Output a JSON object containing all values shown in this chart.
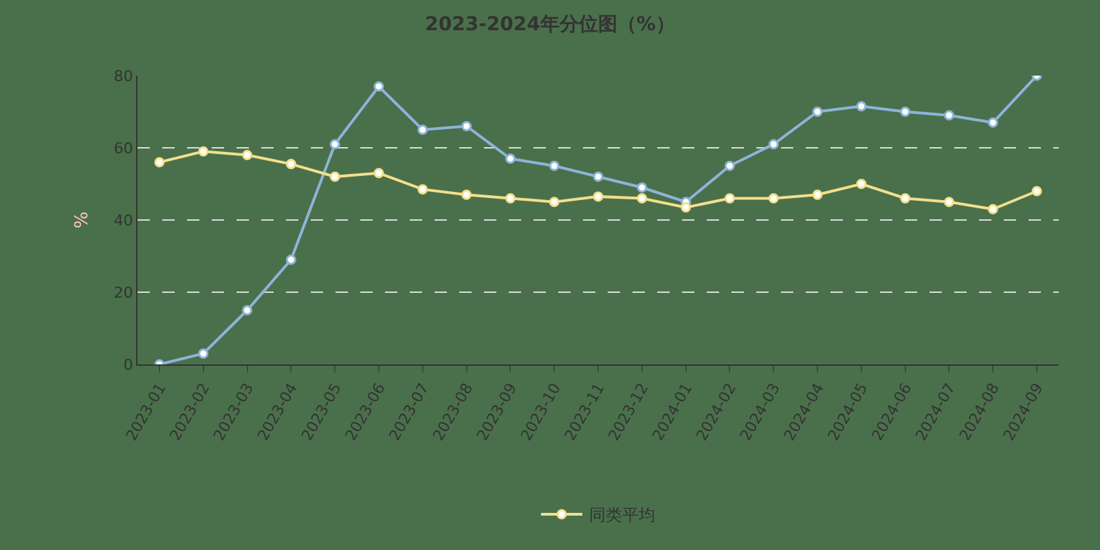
{
  "chart_data": {
    "type": "line",
    "title": "2023-2024年分位图（%）",
    "ylabel": "%",
    "categories": [
      "2023-01",
      "2023-02",
      "2023-03",
      "2023-04",
      "2023-05",
      "2023-06",
      "2023-07",
      "2023-08",
      "2023-09",
      "2023-10",
      "2023-11",
      "2023-12",
      "2024-01",
      "2024-02",
      "2024-03",
      "2024-04",
      "2024-05",
      "2024-06",
      "2024-07",
      "2024-08",
      "2024-09"
    ],
    "series": [
      {
        "color": "#8fb4d9",
        "values": [
          0,
          3,
          15,
          29,
          61,
          77,
          65,
          66,
          57,
          55,
          52,
          49,
          45,
          55,
          61,
          70,
          71.5,
          70,
          69,
          67,
          80
        ]
      },
      {
        "name": "同类平均",
        "color": "#f3df8c",
        "values": [
          56,
          59,
          58,
          55.5,
          52,
          53,
          48.5,
          47,
          46,
          45,
          46.5,
          46,
          43.5,
          46,
          46,
          47,
          50,
          46,
          45,
          43,
          48
        ]
      }
    ],
    "ylim": [
      0,
      80
    ],
    "yticks": [
      0,
      20,
      40,
      60,
      80
    ],
    "grid": "y",
    "legend": "bottom",
    "marker": "circle",
    "line_style": "solid"
  }
}
